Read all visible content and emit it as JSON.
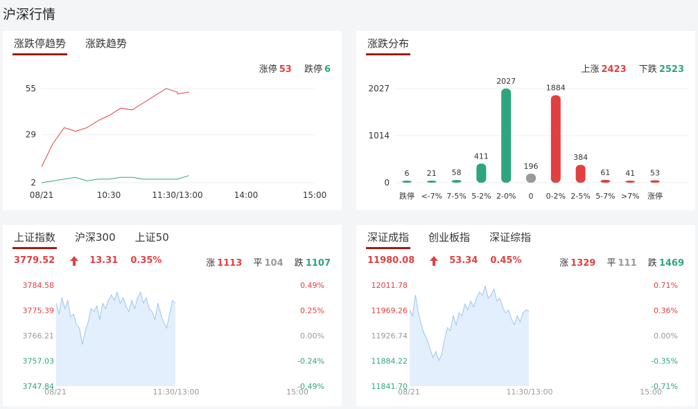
{
  "page": {
    "title": "沪深行情"
  },
  "limit_card": {
    "tabs": [
      "涨跌停趋势",
      "涨跌趋势"
    ],
    "legend": {
      "up_label": "涨停",
      "up_value": "53",
      "down_label": "跌停",
      "down_value": "6"
    },
    "y_ticks": [
      "55",
      "29",
      "2"
    ],
    "x_ticks": [
      "08/21",
      "10:30",
      "11:30/13:00",
      "14:00",
      "15:00"
    ],
    "colors": {
      "up": "#e04040",
      "down": "#2ea57c"
    }
  },
  "dist_card": {
    "tabs": [
      "涨跌分布"
    ],
    "legend": {
      "up_label": "上涨",
      "up_value": "2423",
      "down_label": "下跌",
      "down_value": "2523"
    },
    "y_ticks": [
      "2027",
      "1014",
      "0"
    ]
  },
  "chart_data": [
    {
      "type": "line",
      "title": "涨跌停趋势",
      "x_range": [
        "09:30",
        "15:00"
      ],
      "ylim": [
        2,
        55
      ],
      "series": [
        {
          "name": "涨停",
          "points_note": "",
          "x": [
            "09:30",
            "09:40",
            "09:50",
            "10:00",
            "10:10",
            "10:20",
            "10:30",
            "10:40",
            "10:50",
            "11:00",
            "11:10",
            "11:20",
            "11:30",
            "13:00",
            "13:10"
          ],
          "values": [
            11,
            24,
            33,
            31,
            33,
            37,
            40,
            44,
            43,
            47,
            51,
            55,
            53,
            52,
            53
          ]
        },
        {
          "name": "跌停",
          "x": [
            "09:30",
            "09:40",
            "09:50",
            "10:00",
            "10:10",
            "10:20",
            "10:30",
            "10:40",
            "10:50",
            "11:00",
            "11:10",
            "11:20",
            "11:30",
            "13:00",
            "13:10"
          ],
          "values": [
            2,
            3,
            4,
            5,
            3,
            4,
            4,
            5,
            5,
            4,
            4,
            4,
            4,
            4,
            6
          ]
        }
      ]
    },
    {
      "type": "bar",
      "title": "涨跌分布",
      "categories": [
        "跌停",
        "<-7%",
        "7-5%",
        "5-2%",
        "2-0%",
        "0",
        "0-2%",
        "2-5%",
        "5-7%",
        ">7%",
        "涨停"
      ],
      "values": [
        6,
        21,
        58,
        411,
        2027,
        196,
        1884,
        384,
        61,
        41,
        53
      ],
      "colors": [
        "#2ea57c",
        "#2ea57c",
        "#2ea57c",
        "#2ea57c",
        "#2ea57c",
        "#999999",
        "#e04040",
        "#e04040",
        "#e04040",
        "#e04040",
        "#e04040"
      ],
      "ylim": [
        0,
        2027
      ]
    },
    {
      "type": "area",
      "title": "上证指数",
      "y_ticks_left": [
        "3784.58",
        "3775.39",
        "3766.21",
        "3757.03",
        "3747.84"
      ],
      "y_ticks_right": [
        "0.49%",
        "0.25%",
        "0.00%",
        "-0.24%",
        "-0.49%"
      ],
      "x_ticks": [
        "08/21",
        "11:30/13:00",
        "15:00"
      ],
      "ylim": [
        3747.84,
        3784.58
      ],
      "values": [
        3778,
        3774,
        3780,
        3776,
        3779,
        3773,
        3774,
        3770,
        3769,
        3763,
        3768,
        3771,
        3776,
        3775,
        3777,
        3772,
        3778,
        3776,
        3779,
        3781,
        3779,
        3782,
        3778,
        3780,
        3777,
        3775,
        3779,
        3776,
        3780,
        3782,
        3778,
        3780,
        3776,
        3775,
        3772,
        3778,
        3774,
        3771,
        3769,
        3774,
        3779,
        3778
      ]
    },
    {
      "type": "area",
      "title": "深证成指",
      "y_ticks_left": [
        "12011.78",
        "11969.26",
        "11926.74",
        "11884.22",
        "11841.70"
      ],
      "y_ticks_right": [
        "0.71%",
        "0.36%",
        "0.00%",
        "-0.35%",
        "-0.71%"
      ],
      "x_ticks": [
        "08/21",
        "11:30/13:00",
        "15:00"
      ],
      "ylim": [
        11841.7,
        12011.78
      ],
      "values": [
        11970,
        11960,
        11995,
        11965,
        11945,
        11930,
        11920,
        11905,
        11890,
        11900,
        11885,
        11895,
        11920,
        11940,
        11935,
        11960,
        11945,
        11965,
        11960,
        11980,
        11970,
        11985,
        11975,
        11990,
        12000,
        11995,
        12010,
        11990,
        11995,
        12005,
        11985,
        11990,
        11975,
        11965,
        11970,
        11955,
        11945,
        11960,
        11950,
        11965,
        11970,
        11968
      ]
    }
  ],
  "sh_card": {
    "tabs": [
      "上证指数",
      "沪深300",
      "上证50"
    ],
    "price": "3779.52",
    "change": "13.31",
    "pct": "0.35%",
    "breadth": {
      "up_label": "涨",
      "up_value": "1113",
      "flat_label": "平",
      "flat_value": "104",
      "down_label": "跌",
      "down_value": "1107"
    }
  },
  "sz_card": {
    "tabs": [
      "深证成指",
      "创业板指",
      "深证综指"
    ],
    "price": "11980.08",
    "change": "53.34",
    "pct": "0.45%",
    "breadth": {
      "up_label": "涨",
      "up_value": "1329",
      "flat_label": "平",
      "flat_value": "111",
      "down_label": "跌",
      "down_value": "1469"
    }
  }
}
